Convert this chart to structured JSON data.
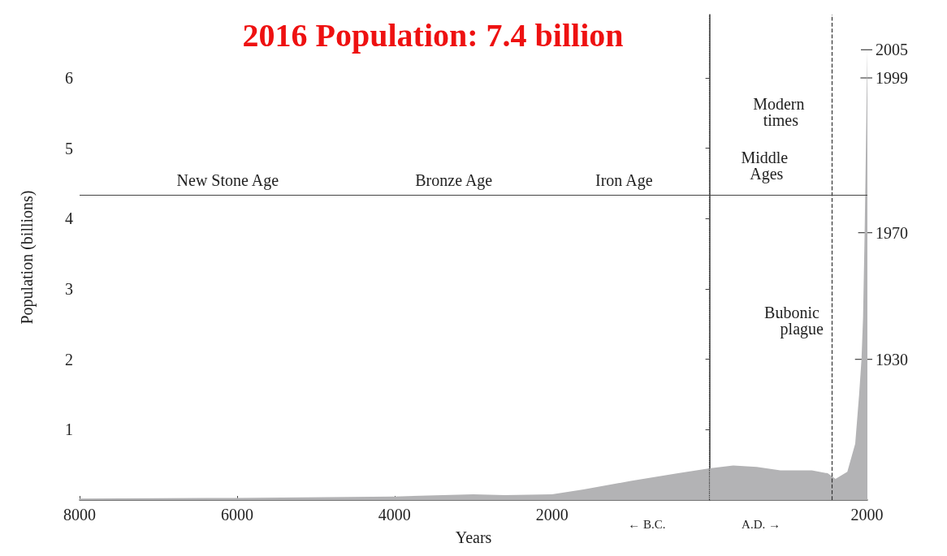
{
  "chart_data": {
    "type": "area",
    "title": "2016 Population: 7.4 billion",
    "xlabel": "Years",
    "ylabel": "Population (billions)",
    "x": [
      -8000,
      -6000,
      -4000,
      -3000,
      -2600,
      -2000,
      -1600,
      -1000,
      -400,
      0,
      300,
      600,
      900,
      1300,
      1500,
      1600,
      1750,
      1850,
      1900,
      1930,
      1950,
      1970,
      1999,
      2005
    ],
    "series": [
      {
        "color": "#b3b3b5",
        "values": [
          0.02,
          0.03,
          0.05,
          0.08,
          0.07,
          0.08,
          0.15,
          0.27,
          0.38,
          0.45,
          0.49,
          0.47,
          0.42,
          0.42,
          0.38,
          0.3,
          0.4,
          0.8,
          1.5,
          2,
          2.6,
          3.8,
          6,
          6.4
        ]
      }
    ],
    "xlim": [
      -8000,
      2005
    ],
    "xticks": [
      {
        "value": -8000,
        "label": "8000"
      },
      {
        "value": -6000,
        "label": "6000"
      },
      {
        "value": -4000,
        "label": "4000"
      },
      {
        "value": -2000,
        "label": "2000"
      },
      {
        "value": 2000,
        "label": "2000"
      }
    ],
    "ylim": [
      0,
      6.9
    ],
    "yticks": [
      1,
      2,
      3,
      4,
      5,
      6
    ],
    "ref_lines": [
      {
        "axis": "x",
        "value": 0,
        "line_style": "dotted",
        "color": "#333333"
      },
      {
        "axis": "x",
        "value": 1550,
        "line_style": "dashed",
        "color": "#333333",
        "label": "Bubonic plague"
      },
      {
        "axis": "y",
        "value": 4.33,
        "line_style": "solid",
        "color": "#444444"
      }
    ],
    "annotations": [
      "New Stone Age",
      "Bronze Age",
      "Iron Age",
      "Middle Ages",
      "Modern times",
      "← B.C.",
      "A.D. →",
      {
        "text": "1930",
        "x": 1930,
        "y": 2
      },
      {
        "text": "1970",
        "x": 1970,
        "y": 3.8
      },
      {
        "text": "1999",
        "x": 1999,
        "y": 6
      },
      {
        "text": "2005",
        "x": 2005,
        "y": 6.4
      }
    ],
    "grid": false
  }
}
